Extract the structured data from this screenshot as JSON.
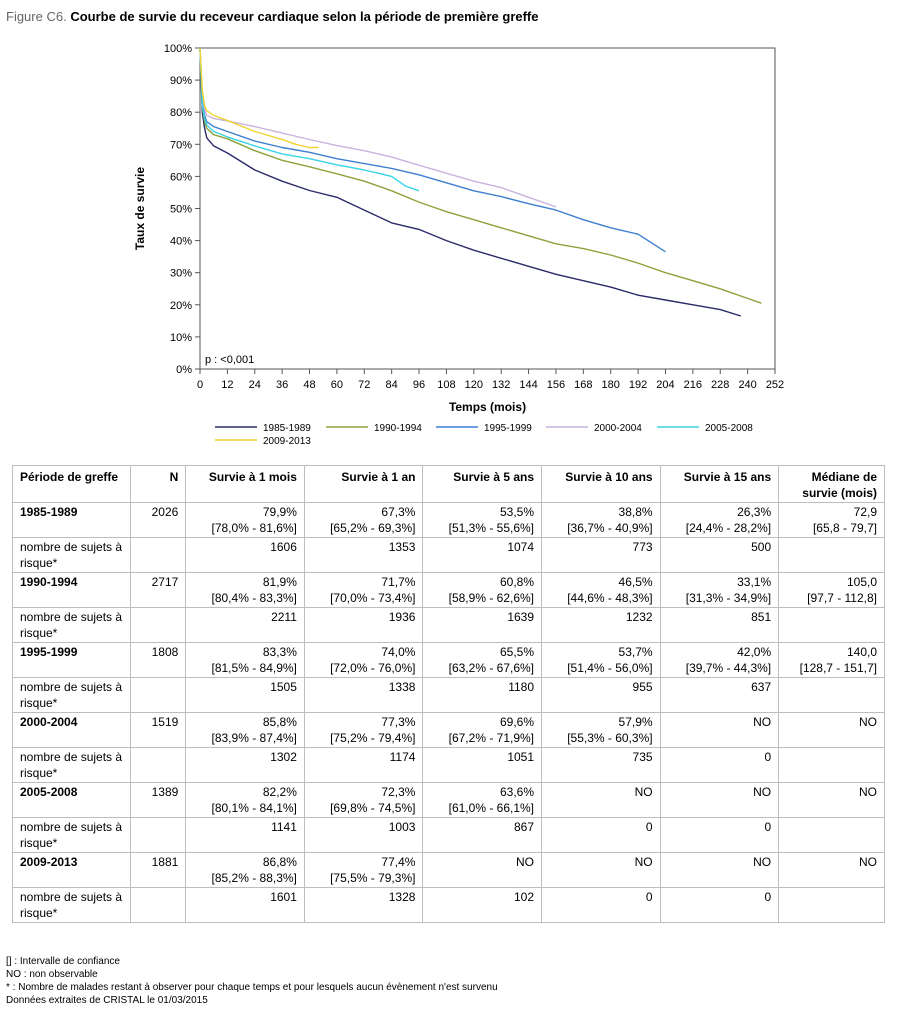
{
  "figure": {
    "label": "Figure C6.",
    "title": "Courbe de survie du receveur cardiaque selon la période de première greffe"
  },
  "chart_data": {
    "type": "line",
    "ylabel": "Taux de survie",
    "xlabel": "Temps (mois)",
    "xlim": [
      0,
      252
    ],
    "ylim": [
      0,
      100
    ],
    "x_ticks": [
      0,
      12,
      24,
      36,
      48,
      60,
      72,
      84,
      96,
      108,
      120,
      132,
      144,
      156,
      168,
      180,
      192,
      204,
      216,
      228,
      240,
      252
    ],
    "y_ticks": [
      "0%",
      "10%",
      "20%",
      "30%",
      "40%",
      "50%",
      "60%",
      "70%",
      "80%",
      "90%",
      "100%"
    ],
    "y_tick_values": [
      0,
      10,
      20,
      30,
      40,
      50,
      60,
      70,
      80,
      90,
      100
    ],
    "annotation": "p : <0,001",
    "grid": false,
    "legend_position": "bottom",
    "series": [
      {
        "name": "1985-1989",
        "color": "#2b2b6b",
        "x": [
          0,
          1,
          2,
          3,
          6,
          12,
          24,
          36,
          48,
          60,
          72,
          84,
          96,
          108,
          120,
          132,
          144,
          156,
          168,
          180,
          192,
          204,
          216,
          228,
          237
        ],
        "y": [
          100,
          79.9,
          75,
          72,
          69.5,
          67.3,
          62,
          58.5,
          55.6,
          53.5,
          49.5,
          45.5,
          43.5,
          40,
          37,
          34.5,
          32,
          29.5,
          27.5,
          25.5,
          23,
          21.5,
          20,
          18.5,
          16.5
        ]
      },
      {
        "name": "1990-1994",
        "color": "#8ca33a",
        "x": [
          0,
          1,
          2,
          3,
          6,
          12,
          24,
          36,
          48,
          60,
          72,
          84,
          96,
          108,
          120,
          132,
          144,
          156,
          168,
          180,
          192,
          204,
          216,
          228,
          240,
          246
        ],
        "y": [
          100,
          81.9,
          77,
          75,
          73,
          71.7,
          68,
          65,
          63,
          60.8,
          58.5,
          55.5,
          52,
          49,
          46.5,
          44,
          41.5,
          39,
          37.5,
          35.5,
          33,
          30,
          27.5,
          25,
          22,
          20.5
        ]
      },
      {
        "name": "1995-1999",
        "color": "#3e7fd0",
        "x": [
          0,
          1,
          2,
          3,
          6,
          12,
          24,
          36,
          48,
          60,
          72,
          84,
          96,
          108,
          120,
          132,
          144,
          156,
          168,
          180,
          192,
          204
        ],
        "y": [
          100,
          83.3,
          79,
          77,
          75.5,
          74,
          71,
          69,
          67.5,
          65.5,
          64,
          62.5,
          60.5,
          58,
          55.5,
          53.7,
          51.5,
          49.5,
          46.5,
          44,
          42,
          36.5
        ]
      },
      {
        "name": "2000-2004",
        "color": "#c9b3de",
        "x": [
          0,
          1,
          2,
          3,
          6,
          12,
          24,
          36,
          48,
          60,
          72,
          84,
          96,
          108,
          120,
          132,
          144,
          156
        ],
        "y": [
          100,
          85.8,
          81,
          79,
          78,
          77.3,
          75.5,
          73.5,
          71.5,
          69.6,
          68,
          66,
          63.5,
          61,
          58.5,
          56.5,
          53.5,
          50.5
        ]
      },
      {
        "name": "2005-2008",
        "color": "#3ad4e4",
        "x": [
          0,
          1,
          2,
          3,
          6,
          12,
          24,
          36,
          48,
          60,
          72,
          84,
          90,
          96
        ],
        "y": [
          100,
          82.2,
          78,
          76,
          74,
          72.3,
          69.5,
          67,
          65.5,
          63.6,
          62,
          60,
          57,
          55.5
        ]
      },
      {
        "name": "2009-2013",
        "color": "#f0d22e",
        "x": [
          0,
          1,
          2,
          3,
          6,
          12,
          24,
          36,
          42,
          48,
          52
        ],
        "y": [
          100,
          86.8,
          82,
          80.5,
          79,
          77.4,
          74,
          71.5,
          70,
          69,
          69
        ]
      }
    ]
  },
  "table": {
    "headers": [
      "Période de greffe",
      "N",
      "Survie à 1 mois",
      "Survie à 1 an",
      "Survie à 5 ans",
      "Survie à 10 ans",
      "Survie à 15 ans",
      "Médiane de survie (mois)"
    ],
    "groups": [
      {
        "period": "1985-1989",
        "n": "2026",
        "values": [
          [
            "79,9%",
            "[78,0% - 81,6%]"
          ],
          [
            "67,3%",
            "[65,2% - 69,3%]"
          ],
          [
            "53,5%",
            "[51,3% - 55,6%]"
          ],
          [
            "38,8%",
            "[36,7% - 40,9%]"
          ],
          [
            "26,3%",
            "[24,4% - 28,2%]"
          ],
          [
            "72,9",
            "[65,8 - 79,7]"
          ]
        ],
        "risk_label": "nombre de sujets à risque*",
        "risk": [
          "1606",
          "1353",
          "1074",
          "773",
          "500",
          ""
        ]
      },
      {
        "period": "1990-1994",
        "n": "2717",
        "values": [
          [
            "81,9%",
            "[80,4% - 83,3%]"
          ],
          [
            "71,7%",
            "[70,0% - 73,4%]"
          ],
          [
            "60,8%",
            "[58,9% - 62,6%]"
          ],
          [
            "46,5%",
            "[44,6% - 48,3%]"
          ],
          [
            "33,1%",
            "[31,3% - 34,9%]"
          ],
          [
            "105,0",
            "[97,7 - 112,8]"
          ]
        ],
        "risk_label": "nombre de sujets à risque*",
        "risk": [
          "2211",
          "1936",
          "1639",
          "1232",
          "851",
          ""
        ]
      },
      {
        "period": "1995-1999",
        "n": "1808",
        "values": [
          [
            "83,3%",
            "[81,5% - 84,9%]"
          ],
          [
            "74,0%",
            "[72,0% - 76,0%]"
          ],
          [
            "65,5%",
            "[63,2% - 67,6%]"
          ],
          [
            "53,7%",
            "[51,4% - 56,0%]"
          ],
          [
            "42,0%",
            "[39,7% - 44,3%]"
          ],
          [
            "140,0",
            "[128,7 - 151,7]"
          ]
        ],
        "risk_label": "nombre de sujets à risque*",
        "risk": [
          "1505",
          "1338",
          "1180",
          "955",
          "637",
          ""
        ]
      },
      {
        "period": "2000-2004",
        "n": "1519",
        "values": [
          [
            "85,8%",
            "[83,9% - 87,4%]"
          ],
          [
            "77,3%",
            "[75,2% - 79,4%]"
          ],
          [
            "69,6%",
            "[67,2% - 71,9%]"
          ],
          [
            "57,9%",
            "[55,3% - 60,3%]"
          ],
          [
            "NO",
            ""
          ],
          [
            "NO",
            ""
          ]
        ],
        "risk_label": "nombre de sujets à risque*",
        "risk": [
          "1302",
          "1174",
          "1051",
          "735",
          "0",
          ""
        ]
      },
      {
        "period": "2005-2008",
        "n": "1389",
        "values": [
          [
            "82,2%",
            "[80,1% - 84,1%]"
          ],
          [
            "72,3%",
            "[69,8% - 74,5%]"
          ],
          [
            "63,6%",
            "[61,0% - 66,1%]"
          ],
          [
            "NO",
            ""
          ],
          [
            "NO",
            ""
          ],
          [
            "NO",
            ""
          ]
        ],
        "risk_label": "nombre de sujets à risque*",
        "risk": [
          "1141",
          "1003",
          "867",
          "0",
          "0",
          ""
        ]
      },
      {
        "period": "2009-2013",
        "n": "1881",
        "values": [
          [
            "86,8%",
            "[85,2% - 88,3%]"
          ],
          [
            "77,4%",
            "[75,5% - 79,3%]"
          ],
          [
            "NO",
            ""
          ],
          [
            "NO",
            ""
          ],
          [
            "NO",
            ""
          ],
          [
            "NO",
            ""
          ]
        ],
        "risk_label": "nombre de sujets à risque*",
        "risk": [
          "1601",
          "1328",
          "102",
          "0",
          "0",
          ""
        ]
      }
    ]
  },
  "notes": [
    "[] : Intervalle de confiance",
    "NO : non observable",
    "* : Nombre de malades restant à observer pour chaque temps et pour lesquels aucun évènement n'est survenu",
    "Données extraites de CRISTAL le 01/03/2015"
  ]
}
